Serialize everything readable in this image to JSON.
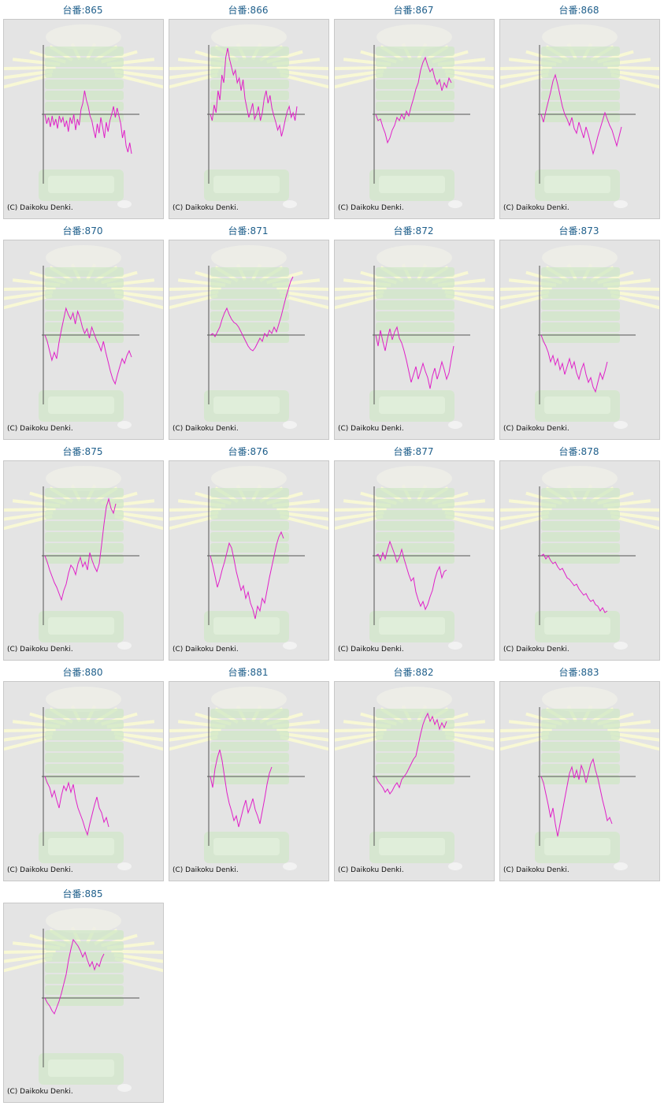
{
  "colors": {
    "title": "#1f5f8b",
    "line": "#e020c8",
    "axis": "#555555",
    "panel": "#e4e4e4",
    "art_green": "#cfe8c4",
    "art_rays": "#fbfbd4"
  },
  "credit_text": "(C) Daikoku Denki.",
  "chart_data": [
    {
      "type": "line",
      "title": "台番:865",
      "values": [
        0,
        -12,
        -4,
        -16,
        -2,
        -14,
        -6,
        -18,
        -2,
        -10,
        -4,
        -16,
        -8,
        -22,
        -4,
        -12,
        0,
        -20,
        -6,
        -14,
        6,
        14,
        30,
        18,
        10,
        -2,
        -8,
        -20,
        -30,
        -12,
        -24,
        -4,
        -16,
        -30,
        -10,
        -22,
        -8,
        0,
        10,
        -4,
        8,
        -2,
        -12,
        -30,
        -20,
        -40,
        -48,
        -36,
        -50
      ]
    },
    {
      "type": "line",
      "title": "台番:866",
      "values": [
        0,
        -8,
        12,
        2,
        30,
        18,
        50,
        40,
        72,
        84,
        70,
        60,
        50,
        56,
        40,
        46,
        30,
        44,
        20,
        8,
        -4,
        4,
        14,
        -6,
        0,
        10,
        -8,
        2,
        20,
        30,
        14,
        24,
        8,
        -2,
        -10,
        -20,
        -14,
        -28,
        -18,
        -6,
        4,
        10,
        -4,
        2,
        -8,
        10
      ]
    },
    {
      "type": "line",
      "title": "台番:867",
      "values": [
        0,
        -8,
        -6,
        -16,
        -24,
        -36,
        -30,
        -20,
        -14,
        -4,
        -8,
        0,
        -6,
        4,
        -2,
        10,
        20,
        32,
        40,
        56,
        66,
        72,
        62,
        54,
        58,
        46,
        38,
        44,
        30,
        40,
        34,
        46,
        40
      ]
    },
    {
      "type": "line",
      "title": "台番:868",
      "values": [
        0,
        -10,
        4,
        16,
        28,
        42,
        50,
        38,
        24,
        10,
        0,
        -6,
        -14,
        -4,
        -18,
        -24,
        -10,
        -20,
        -30,
        -16,
        -26,
        -38,
        -50,
        -40,
        -28,
        -18,
        -8,
        2,
        -6,
        -14,
        -20,
        -30,
        -40,
        -28,
        -16
      ]
    },
    {
      "type": "line",
      "title": "台番:870",
      "values": [
        0,
        -8,
        -20,
        -32,
        -22,
        -30,
        -10,
        6,
        20,
        34,
        26,
        20,
        28,
        14,
        30,
        22,
        10,
        2,
        8,
        -4,
        10,
        2,
        -6,
        -12,
        -20,
        -8,
        -22,
        -34,
        -46,
        -56,
        -62,
        -50,
        -40,
        -30,
        -36,
        -26,
        -20,
        -28
      ]
    },
    {
      "type": "line",
      "title": "台番:871",
      "values": [
        0,
        2,
        -2,
        4,
        10,
        20,
        28,
        34,
        26,
        20,
        16,
        14,
        10,
        4,
        -2,
        -8,
        -14,
        -18,
        -20,
        -16,
        -10,
        -4,
        -8,
        2,
        -2,
        6,
        2,
        10,
        4,
        14,
        24,
        36,
        48,
        58,
        68,
        74
      ]
    },
    {
      "type": "line",
      "title": "台番:872",
      "values": [
        0,
        -14,
        6,
        -8,
        -20,
        -4,
        8,
        -6,
        4,
        10,
        -4,
        -10,
        -20,
        -32,
        -46,
        -60,
        -50,
        -40,
        -56,
        -46,
        -36,
        -46,
        -54,
        -68,
        -52,
        -42,
        -56,
        -46,
        -34,
        -44,
        -56,
        -48,
        -30,
        -14
      ]
    },
    {
      "type": "line",
      "title": "台番:873",
      "values": [
        0,
        -8,
        -14,
        -22,
        -34,
        -26,
        -38,
        -30,
        -44,
        -36,
        -50,
        -40,
        -30,
        -42,
        -34,
        -48,
        -56,
        -44,
        -36,
        -50,
        -60,
        -54,
        -66,
        -72,
        -60,
        -48,
        -56,
        -46,
        -34
      ]
    },
    {
      "type": "line",
      "title": "台番:875",
      "values": [
        0,
        -8,
        -18,
        -26,
        -34,
        -40,
        -48,
        -56,
        -44,
        -36,
        -22,
        -12,
        -16,
        -24,
        -10,
        -2,
        -14,
        -8,
        -18,
        4,
        -6,
        -14,
        -20,
        -10,
        14,
        40,
        62,
        72,
        60,
        54,
        66
      ]
    },
    {
      "type": "line",
      "title": "台番:876",
      "values": [
        0,
        -12,
        -26,
        -40,
        -30,
        -18,
        -8,
        4,
        16,
        10,
        -4,
        -20,
        -32,
        -44,
        -38,
        -54,
        -46,
        -60,
        -68,
        -80,
        -64,
        -70,
        -54,
        -60,
        -44,
        -28,
        -14,
        0,
        14,
        24,
        30,
        22
      ]
    },
    {
      "type": "line",
      "title": "台番:877",
      "values": [
        0,
        2,
        -6,
        4,
        -4,
        8,
        18,
        10,
        2,
        -8,
        -2,
        8,
        -4,
        -14,
        -24,
        -32,
        -28,
        -46,
        -56,
        -64,
        -58,
        -68,
        -62,
        -52,
        -44,
        -30,
        -20,
        -14,
        -28,
        -20,
        -18
      ]
    },
    {
      "type": "line",
      "title": "台番:878",
      "values": [
        0,
        2,
        -4,
        0,
        -6,
        -10,
        -8,
        -14,
        -18,
        -16,
        -22,
        -28,
        -30,
        -34,
        -38,
        -36,
        -42,
        -46,
        -50,
        -48,
        -54,
        -58,
        -56,
        -62,
        -64,
        -70,
        -66,
        -72,
        -70
      ]
    },
    {
      "type": "line",
      "title": "台番:880",
      "values": [
        0,
        -8,
        -14,
        -26,
        -18,
        -30,
        -40,
        -24,
        -12,
        -18,
        -8,
        -20,
        -10,
        -28,
        -40,
        -48,
        -56,
        -66,
        -74,
        -60,
        -48,
        -36,
        -26,
        -40,
        -46,
        -58,
        -52,
        -64
      ]
    },
    {
      "type": "line",
      "title": "台番:881",
      "values": [
        0,
        -14,
        10,
        24,
        34,
        20,
        0,
        -20,
        -34,
        -44,
        -56,
        -50,
        -64,
        -52,
        -40,
        -30,
        -46,
        -38,
        -28,
        -42,
        -50,
        -60,
        -44,
        -28,
        -10,
        4,
        12
      ]
    },
    {
      "type": "line",
      "title": "台番:882",
      "values": [
        0,
        -6,
        -10,
        -14,
        -20,
        -16,
        -22,
        -18,
        -12,
        -8,
        -14,
        -4,
        0,
        4,
        10,
        16,
        22,
        26,
        40,
        54,
        66,
        74,
        80,
        70,
        76,
        66,
        72,
        60,
        68,
        62,
        70
      ]
    },
    {
      "type": "line",
      "title": "台番:883",
      "values": [
        0,
        -8,
        -22,
        -36,
        -52,
        -40,
        -60,
        -76,
        -60,
        -44,
        -28,
        -12,
        4,
        12,
        -2,
        8,
        -4,
        14,
        6,
        -8,
        4,
        16,
        22,
        8,
        -2,
        -16,
        -30,
        -42,
        -56,
        -52,
        -60
      ]
    },
    {
      "type": "line",
      "title": "台番:885",
      "values": [
        0,
        -6,
        -10,
        -16,
        -20,
        -12,
        -4,
        6,
        18,
        30,
        48,
        62,
        74,
        70,
        66,
        60,
        52,
        58,
        48,
        40,
        46,
        36,
        44,
        40,
        50,
        56
      ]
    }
  ]
}
